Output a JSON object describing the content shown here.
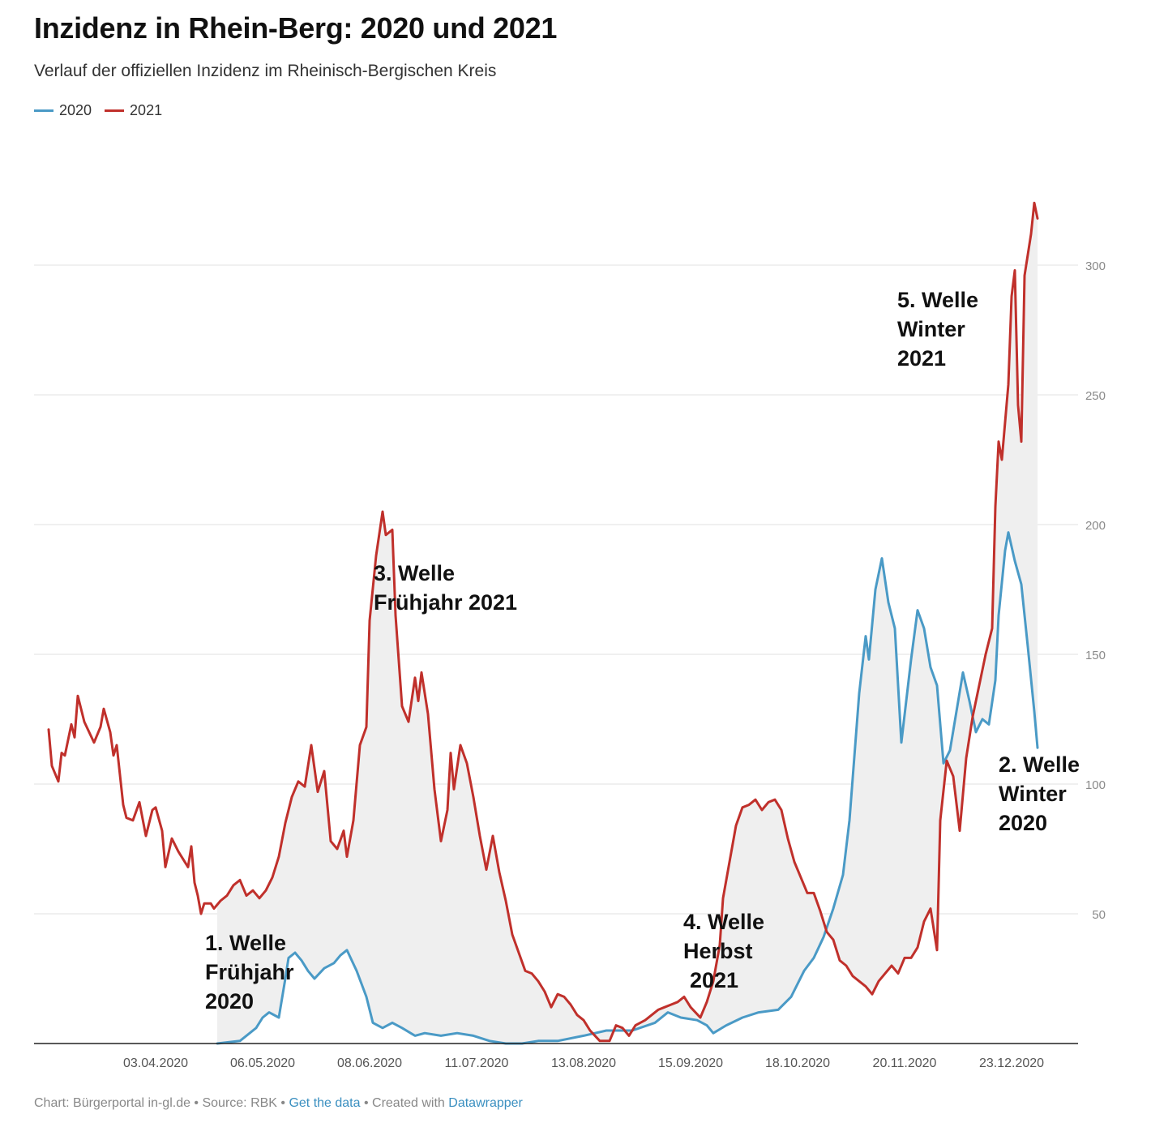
{
  "title": "Inzidenz in Rhein-Berg: 2020 und 2021",
  "subtitle": "Verlauf der offiziellen Inzidenz im Rheinisch-Bergischen Kreis",
  "colors": {
    "series2020": "#4a9ac6",
    "series2021": "#c0302b",
    "fill": "#efefef",
    "grid": "#e2e2e2",
    "axis": "#222222",
    "tick": "#8a8a8a",
    "annotation": "#111111"
  },
  "footer": {
    "prefix": "Chart: Bürgerportal in-gl.de • Source: RBK • ",
    "get_data": "Get the data",
    "middle": " • Created with ",
    "datawrapper": "Datawrapper"
  },
  "chart_data": {
    "type": "line",
    "title": "Inzidenz in Rhein-Berg: 2020 und 2021",
    "x_ticks": [
      "03.04.2020",
      "06.05.2020",
      "08.06.2020",
      "11.07.2020",
      "13.08.2020",
      "15.09.2020",
      "18.10.2020",
      "20.11.2020",
      "23.12.2020"
    ],
    "y_ticks": [
      50,
      100,
      150,
      200,
      250,
      300
    ],
    "ylim": [
      0,
      350
    ],
    "x_range": [
      "2020-03-01",
      "2020-12-31"
    ],
    "grid": true,
    "y_axis_position": "right",
    "legend_position": "top-left",
    "series": [
      {
        "name": "2020",
        "color": "#4a9ac6",
        "points": [
          [
            "2020-04-22",
            0
          ],
          [
            "2020-04-29",
            1
          ],
          [
            "2020-05-01",
            3
          ],
          [
            "2020-05-04",
            6
          ],
          [
            "2020-05-06",
            10
          ],
          [
            "2020-05-08",
            12
          ],
          [
            "2020-05-11",
            10
          ],
          [
            "2020-05-13",
            25
          ],
          [
            "2020-05-14",
            33
          ],
          [
            "2020-05-16",
            35
          ],
          [
            "2020-05-18",
            32
          ],
          [
            "2020-05-20",
            28
          ],
          [
            "2020-05-22",
            25
          ],
          [
            "2020-05-25",
            29
          ],
          [
            "2020-05-28",
            31
          ],
          [
            "2020-05-30",
            34
          ],
          [
            "2020-06-01",
            36
          ],
          [
            "2020-06-04",
            28
          ],
          [
            "2020-06-07",
            18
          ],
          [
            "2020-06-09",
            8
          ],
          [
            "2020-06-12",
            6
          ],
          [
            "2020-06-15",
            8
          ],
          [
            "2020-06-18",
            6
          ],
          [
            "2020-06-22",
            3
          ],
          [
            "2020-06-25",
            4
          ],
          [
            "2020-06-30",
            3
          ],
          [
            "2020-07-05",
            4
          ],
          [
            "2020-07-10",
            3
          ],
          [
            "2020-07-15",
            1
          ],
          [
            "2020-07-20",
            0
          ],
          [
            "2020-07-25",
            0
          ],
          [
            "2020-07-30",
            1
          ],
          [
            "2020-08-05",
            1
          ],
          [
            "2020-08-13",
            3
          ],
          [
            "2020-08-20",
            5
          ],
          [
            "2020-08-28",
            5
          ],
          [
            "2020-09-04",
            8
          ],
          [
            "2020-09-08",
            12
          ],
          [
            "2020-09-12",
            10
          ],
          [
            "2020-09-17",
            9
          ],
          [
            "2020-09-20",
            7
          ],
          [
            "2020-09-22",
            4
          ],
          [
            "2020-09-26",
            7
          ],
          [
            "2020-10-01",
            10
          ],
          [
            "2020-10-06",
            12
          ],
          [
            "2020-10-12",
            13
          ],
          [
            "2020-10-16",
            18
          ],
          [
            "2020-10-20",
            28
          ],
          [
            "2020-10-23",
            33
          ],
          [
            "2020-10-26",
            41
          ],
          [
            "2020-10-29",
            52
          ],
          [
            "2020-11-01",
            65
          ],
          [
            "2020-11-03",
            86
          ],
          [
            "2020-11-06",
            135
          ],
          [
            "2020-11-08",
            157
          ],
          [
            "2020-11-09",
            148
          ],
          [
            "2020-11-11",
            175
          ],
          [
            "2020-11-13",
            187
          ],
          [
            "2020-11-15",
            170
          ],
          [
            "2020-11-17",
            160
          ],
          [
            "2020-11-19",
            116
          ],
          [
            "2020-11-22",
            148
          ],
          [
            "2020-11-24",
            167
          ],
          [
            "2020-11-26",
            160
          ],
          [
            "2020-11-28",
            145
          ],
          [
            "2020-11-30",
            138
          ],
          [
            "2020-12-02",
            108
          ],
          [
            "2020-12-04",
            113
          ],
          [
            "2020-12-06",
            128
          ],
          [
            "2020-12-08",
            143
          ],
          [
            "2020-12-10",
            132
          ],
          [
            "2020-12-12",
            120
          ],
          [
            "2020-12-14",
            125
          ],
          [
            "2020-12-16",
            123
          ],
          [
            "2020-12-18",
            140
          ],
          [
            "2020-12-19",
            165
          ],
          [
            "2020-12-21",
            190
          ],
          [
            "2020-12-22",
            197
          ],
          [
            "2020-12-24",
            186
          ],
          [
            "2020-12-26",
            177
          ],
          [
            "2020-12-28",
            153
          ],
          [
            "2020-12-30",
            128
          ],
          [
            "2020-12-31",
            114
          ]
        ]
      },
      {
        "name": "2021",
        "color": "#c0302b",
        "points": [
          [
            "2020-03-01",
            121
          ],
          [
            "2020-03-02",
            107
          ],
          [
            "2020-03-04",
            101
          ],
          [
            "2020-03-05",
            112
          ],
          [
            "2020-03-06",
            111
          ],
          [
            "2020-03-08",
            123
          ],
          [
            "2020-03-09",
            118
          ],
          [
            "2020-03-10",
            134
          ],
          [
            "2020-03-12",
            124
          ],
          [
            "2020-03-15",
            116
          ],
          [
            "2020-03-17",
            122
          ],
          [
            "2020-03-18",
            129
          ],
          [
            "2020-03-20",
            120
          ],
          [
            "2020-03-21",
            111
          ],
          [
            "2020-03-22",
            115
          ],
          [
            "2020-03-24",
            92
          ],
          [
            "2020-03-25",
            87
          ],
          [
            "2020-03-27",
            86
          ],
          [
            "2020-03-29",
            93
          ],
          [
            "2020-03-31",
            80
          ],
          [
            "2020-04-02",
            90
          ],
          [
            "2020-04-03",
            91
          ],
          [
            "2020-04-05",
            82
          ],
          [
            "2020-04-06",
            68
          ],
          [
            "2020-04-08",
            79
          ],
          [
            "2020-04-10",
            74
          ],
          [
            "2020-04-13",
            68
          ],
          [
            "2020-04-14",
            76
          ],
          [
            "2020-04-15",
            62
          ],
          [
            "2020-04-16",
            57
          ],
          [
            "2020-04-17",
            50
          ],
          [
            "2020-04-18",
            54
          ],
          [
            "2020-04-20",
            54
          ],
          [
            "2020-04-21",
            52
          ],
          [
            "2020-04-23",
            55
          ],
          [
            "2020-04-25",
            57
          ],
          [
            "2020-04-27",
            61
          ],
          [
            "2020-04-29",
            63
          ],
          [
            "2020-05-01",
            57
          ],
          [
            "2020-05-03",
            59
          ],
          [
            "2020-05-05",
            56
          ],
          [
            "2020-05-07",
            59
          ],
          [
            "2020-05-09",
            64
          ],
          [
            "2020-05-11",
            72
          ],
          [
            "2020-05-13",
            85
          ],
          [
            "2020-05-15",
            95
          ],
          [
            "2020-05-17",
            101
          ],
          [
            "2020-05-19",
            99
          ],
          [
            "2020-05-21",
            115
          ],
          [
            "2020-05-23",
            97
          ],
          [
            "2020-05-25",
            105
          ],
          [
            "2020-05-27",
            78
          ],
          [
            "2020-05-29",
            75
          ],
          [
            "2020-05-31",
            82
          ],
          [
            "2020-06-01",
            72
          ],
          [
            "2020-06-03",
            86
          ],
          [
            "2020-06-05",
            115
          ],
          [
            "2020-06-07",
            122
          ],
          [
            "2020-06-08",
            163
          ],
          [
            "2020-06-10",
            188
          ],
          [
            "2020-06-12",
            205
          ],
          [
            "2020-06-13",
            196
          ],
          [
            "2020-06-15",
            198
          ],
          [
            "2020-06-16",
            165
          ],
          [
            "2020-06-18",
            130
          ],
          [
            "2020-06-20",
            124
          ],
          [
            "2020-06-22",
            141
          ],
          [
            "2020-06-23",
            132
          ],
          [
            "2020-06-24",
            143
          ],
          [
            "2020-06-26",
            127
          ],
          [
            "2020-06-28",
            98
          ],
          [
            "2020-06-30",
            78
          ],
          [
            "2020-07-02",
            90
          ],
          [
            "2020-07-03",
            112
          ],
          [
            "2020-07-04",
            98
          ],
          [
            "2020-07-06",
            115
          ],
          [
            "2020-07-08",
            108
          ],
          [
            "2020-07-10",
            95
          ],
          [
            "2020-07-12",
            80
          ],
          [
            "2020-07-14",
            67
          ],
          [
            "2020-07-16",
            80
          ],
          [
            "2020-07-18",
            66
          ],
          [
            "2020-07-20",
            55
          ],
          [
            "2020-07-22",
            42
          ],
          [
            "2020-07-24",
            35
          ],
          [
            "2020-07-26",
            28
          ],
          [
            "2020-07-28",
            27
          ],
          [
            "2020-07-30",
            24
          ],
          [
            "2020-08-01",
            20
          ],
          [
            "2020-08-03",
            14
          ],
          [
            "2020-08-05",
            19
          ],
          [
            "2020-08-07",
            18
          ],
          [
            "2020-08-09",
            15
          ],
          [
            "2020-08-11",
            11
          ],
          [
            "2020-08-13",
            9
          ],
          [
            "2020-08-15",
            5
          ],
          [
            "2020-08-18",
            1
          ],
          [
            "2020-08-21",
            1
          ],
          [
            "2020-08-23",
            7
          ],
          [
            "2020-08-25",
            6
          ],
          [
            "2020-08-27",
            3
          ],
          [
            "2020-08-29",
            7
          ],
          [
            "2020-09-01",
            9
          ],
          [
            "2020-09-03",
            11
          ],
          [
            "2020-09-05",
            13
          ],
          [
            "2020-09-07",
            14
          ],
          [
            "2020-09-09",
            15
          ],
          [
            "2020-09-11",
            16
          ],
          [
            "2020-09-13",
            18
          ],
          [
            "2020-09-15",
            14
          ],
          [
            "2020-09-18",
            10
          ],
          [
            "2020-09-20",
            16
          ],
          [
            "2020-09-22",
            24
          ],
          [
            "2020-09-24",
            38
          ],
          [
            "2020-09-25",
            56
          ],
          [
            "2020-09-27",
            70
          ],
          [
            "2020-09-29",
            84
          ],
          [
            "2020-10-01",
            91
          ],
          [
            "2020-10-03",
            92
          ],
          [
            "2020-10-05",
            94
          ],
          [
            "2020-10-07",
            90
          ],
          [
            "2020-10-09",
            93
          ],
          [
            "2020-10-11",
            94
          ],
          [
            "2020-10-13",
            90
          ],
          [
            "2020-10-15",
            79
          ],
          [
            "2020-10-17",
            70
          ],
          [
            "2020-10-19",
            64
          ],
          [
            "2020-10-21",
            58
          ],
          [
            "2020-10-23",
            58
          ],
          [
            "2020-10-25",
            51
          ],
          [
            "2020-10-27",
            43
          ],
          [
            "2020-10-29",
            40
          ],
          [
            "2020-10-31",
            32
          ],
          [
            "2020-11-02",
            30
          ],
          [
            "2020-11-04",
            26
          ],
          [
            "2020-11-06",
            24
          ],
          [
            "2020-11-08",
            22
          ],
          [
            "2020-11-10",
            19
          ],
          [
            "2020-11-12",
            24
          ],
          [
            "2020-11-14",
            27
          ],
          [
            "2020-11-16",
            30
          ],
          [
            "2020-11-18",
            27
          ],
          [
            "2020-11-20",
            33
          ],
          [
            "2020-11-22",
            33
          ],
          [
            "2020-11-24",
            37
          ],
          [
            "2020-11-26",
            47
          ],
          [
            "2020-11-28",
            52
          ],
          [
            "2020-11-30",
            36
          ],
          [
            "2020-12-01",
            86
          ],
          [
            "2020-12-03",
            109
          ],
          [
            "2020-12-05",
            103
          ],
          [
            "2020-12-07",
            82
          ],
          [
            "2020-12-09",
            110
          ],
          [
            "2020-12-11",
            126
          ],
          [
            "2020-12-13",
            138
          ],
          [
            "2020-12-15",
            150
          ],
          [
            "2020-12-17",
            160
          ],
          [
            "2020-12-18",
            207
          ],
          [
            "2020-12-19",
            232
          ],
          [
            "2020-12-20",
            225
          ],
          [
            "2020-12-22",
            254
          ],
          [
            "2020-12-23",
            288
          ],
          [
            "2020-12-24",
            298
          ],
          [
            "2020-12-25",
            246
          ],
          [
            "2020-12-26",
            232
          ],
          [
            "2020-12-27",
            296
          ],
          [
            "2020-12-29",
            312
          ],
          [
            "2020-12-30",
            324
          ],
          [
            "2020-12-31",
            318
          ]
        ]
      }
    ],
    "annotations": [
      {
        "lines": [
          "1. Welle",
          "Frühjahr",
          "2020"
        ],
        "align": "left"
      },
      {
        "lines": [
          "3. Welle",
          "Frühjahr 2021"
        ],
        "align": "left"
      },
      {
        "lines": [
          "4. Welle",
          "Herbst",
          "2021"
        ],
        "align": "left"
      },
      {
        "lines": [
          "5. Welle",
          "Winter",
          "2021"
        ],
        "align": "left"
      },
      {
        "lines": [
          "2. Welle",
          "Winter",
          "2020"
        ],
        "align": "left"
      }
    ]
  }
}
